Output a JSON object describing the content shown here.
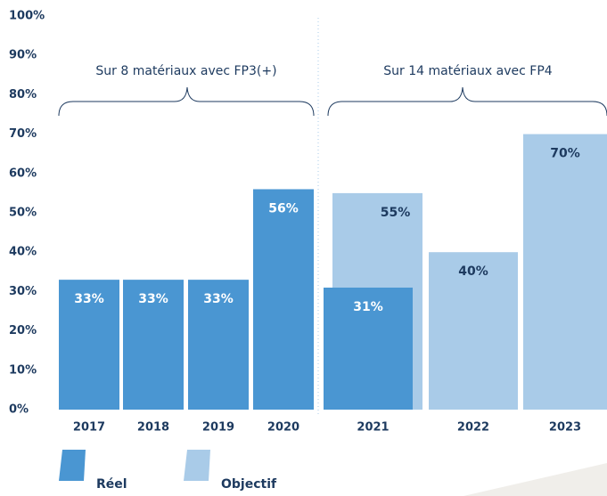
{
  "chart_data": {
    "type": "bar",
    "categories": [
      "2017",
      "2018",
      "2019",
      "2020",
      "2021",
      "2022",
      "2023"
    ],
    "series": [
      {
        "name": "Réel",
        "color": "#4a96d2",
        "values": [
          33,
          33,
          33,
          56,
          31,
          null,
          null
        ],
        "value_labels": [
          "33%",
          "33%",
          "33%",
          "56%",
          "31%",
          null,
          null
        ]
      },
      {
        "name": "Objectif",
        "color": "#a9cbe8",
        "values": [
          null,
          null,
          null,
          null,
          55,
          40,
          70
        ],
        "value_labels": [
          null,
          null,
          null,
          null,
          "55%",
          "40%",
          "70%"
        ]
      }
    ],
    "annotations": [
      "Sur 8 matériaux avec FP3(+)",
      "Sur 14 matériaux avec FP4"
    ],
    "ylim": [
      0,
      100
    ],
    "yticks": [
      {
        "value": 0,
        "label": "0%"
      },
      {
        "value": 10,
        "label": "10%"
      },
      {
        "value": 20,
        "label": "20%"
      },
      {
        "value": 30,
        "label": "30%"
      },
      {
        "value": 40,
        "label": "40%"
      },
      {
        "value": 50,
        "label": "50%"
      },
      {
        "value": 60,
        "label": "60%"
      },
      {
        "value": 70,
        "label": "70%"
      },
      {
        "value": 80,
        "label": "80%"
      },
      {
        "value": 90,
        "label": "90%"
      },
      {
        "value": 100,
        "label": "100%"
      }
    ],
    "grid": false,
    "legend": "bottom"
  }
}
